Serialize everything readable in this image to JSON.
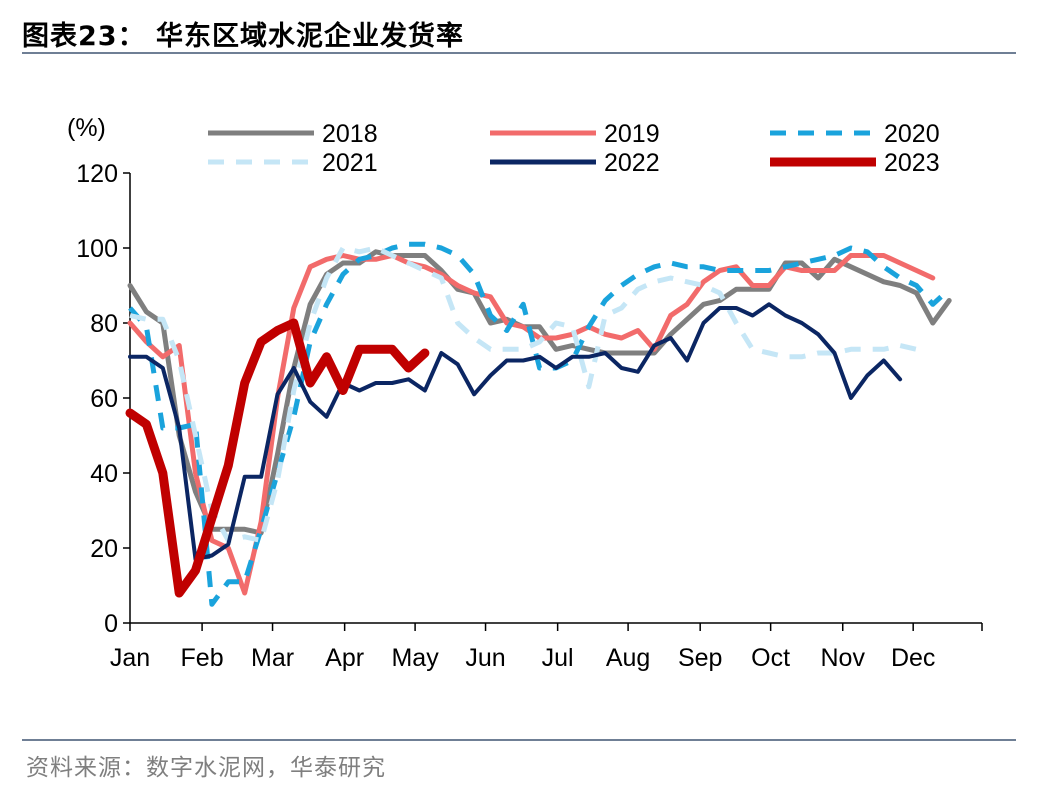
{
  "header": {
    "title": "图表23：  华东区域水泥企业发货率"
  },
  "footer": {
    "source": "资料来源：数字水泥网，华泰研究"
  },
  "chart_data": {
    "type": "line",
    "title": "",
    "ylabel": "(%)",
    "ylim": [
      0,
      120
    ],
    "yticks": [
      0,
      20,
      40,
      60,
      80,
      100,
      120
    ],
    "xlim": [
      0,
      52
    ],
    "month_labels": [
      "Jan",
      "Feb",
      "Mar",
      "Apr",
      "May",
      "Jun",
      "Jul",
      "Aug",
      "Sep",
      "Oct",
      "Nov",
      "Dec"
    ],
    "month_positions": [
      0,
      4.4,
      8.7,
      13.1,
      17.4,
      21.7,
      26.1,
      30.4,
      34.8,
      39.1,
      43.5,
      47.8
    ],
    "grid": false,
    "legend_position": "top",
    "series": [
      {
        "name": "2018",
        "color": "#7f7f7f",
        "dash": "solid",
        "width": 5,
        "points": [
          [
            0,
            90
          ],
          [
            1,
            83
          ],
          [
            2,
            80
          ],
          [
            3,
            50
          ],
          [
            4,
            35
          ],
          [
            5,
            25
          ],
          [
            6,
            25
          ],
          [
            7,
            25
          ],
          [
            8,
            24
          ],
          [
            9,
            45
          ],
          [
            10,
            68
          ],
          [
            11,
            85
          ],
          [
            12,
            93
          ],
          [
            13,
            96
          ],
          [
            14,
            96
          ],
          [
            15,
            99
          ],
          [
            16,
            98
          ],
          [
            17,
            98
          ],
          [
            18,
            98
          ],
          [
            19,
            94
          ],
          [
            20,
            89
          ],
          [
            21,
            88
          ],
          [
            22,
            80
          ],
          [
            23,
            81
          ],
          [
            24,
            79
          ],
          [
            25,
            79
          ],
          [
            26,
            73
          ],
          [
            27,
            74
          ],
          [
            28,
            73
          ],
          [
            29,
            72
          ],
          [
            30,
            72
          ],
          [
            31,
            72
          ],
          [
            32,
            72
          ],
          [
            33,
            77
          ],
          [
            34,
            81
          ],
          [
            35,
            85
          ],
          [
            36,
            86
          ],
          [
            37,
            89
          ],
          [
            38,
            89
          ],
          [
            39,
            89
          ],
          [
            40,
            96
          ],
          [
            41,
            96
          ],
          [
            42,
            92
          ],
          [
            43,
            97
          ],
          [
            44,
            95
          ],
          [
            45,
            93
          ],
          [
            46,
            91
          ],
          [
            47,
            90
          ],
          [
            48,
            88
          ],
          [
            49,
            80
          ],
          [
            50,
            86
          ]
        ]
      },
      {
        "name": "2019",
        "color": "#f26b6b",
        "dash": "solid",
        "width": 5,
        "points": [
          [
            0,
            80
          ],
          [
            1,
            75
          ],
          [
            2,
            71
          ],
          [
            3,
            74
          ],
          [
            4,
            40
          ],
          [
            5,
            22
          ],
          [
            6,
            20
          ],
          [
            7,
            8
          ],
          [
            8,
            27
          ],
          [
            9,
            60
          ],
          [
            10,
            84
          ],
          [
            11,
            95
          ],
          [
            12,
            97
          ],
          [
            13,
            98
          ],
          [
            14,
            97
          ],
          [
            15,
            97
          ],
          [
            16,
            98
          ],
          [
            17,
            96
          ],
          [
            18,
            95
          ],
          [
            19,
            93
          ],
          [
            20,
            90
          ],
          [
            21,
            88
          ],
          [
            22,
            87
          ],
          [
            23,
            80
          ],
          [
            24,
            79
          ],
          [
            25,
            76
          ],
          [
            26,
            76
          ],
          [
            27,
            77
          ],
          [
            28,
            79
          ],
          [
            29,
            77
          ],
          [
            30,
            76
          ],
          [
            31,
            78
          ],
          [
            32,
            73
          ],
          [
            33,
            82
          ],
          [
            34,
            85
          ],
          [
            35,
            91
          ],
          [
            36,
            94
          ],
          [
            37,
            95
          ],
          [
            38,
            90
          ],
          [
            39,
            90
          ],
          [
            40,
            95
          ],
          [
            41,
            94
          ],
          [
            42,
            94
          ],
          [
            43,
            94
          ],
          [
            44,
            98
          ],
          [
            45,
            98
          ],
          [
            46,
            98
          ],
          [
            47,
            96
          ],
          [
            48,
            94
          ],
          [
            49,
            92
          ]
        ]
      },
      {
        "name": "2020",
        "color": "#1aa3dc",
        "dash": "dashed",
        "width": 5,
        "points": [
          [
            0,
            84
          ],
          [
            1,
            79
          ],
          [
            2,
            52
          ],
          [
            3,
            52
          ],
          [
            4,
            53
          ],
          [
            5,
            5
          ],
          [
            6,
            11
          ],
          [
            7,
            11
          ],
          [
            8,
            25
          ],
          [
            9,
            40
          ],
          [
            10,
            55
          ],
          [
            11,
            75
          ],
          [
            12,
            85
          ],
          [
            13,
            93
          ],
          [
            14,
            97
          ],
          [
            15,
            98
          ],
          [
            16,
            100
          ],
          [
            17,
            101
          ],
          [
            18,
            101
          ],
          [
            19,
            100
          ],
          [
            20,
            98
          ],
          [
            21,
            93
          ],
          [
            22,
            82
          ],
          [
            23,
            78
          ],
          [
            24,
            85
          ],
          [
            25,
            68
          ],
          [
            26,
            68
          ],
          [
            27,
            70
          ],
          [
            28,
            79
          ],
          [
            29,
            86
          ],
          [
            30,
            90
          ],
          [
            31,
            93
          ],
          [
            32,
            95
          ],
          [
            33,
            96
          ],
          [
            34,
            95
          ],
          [
            35,
            95
          ],
          [
            36,
            94
          ],
          [
            37,
            94
          ],
          [
            38,
            94
          ],
          [
            39,
            94
          ],
          [
            40,
            95
          ],
          [
            41,
            96
          ],
          [
            42,
            97
          ],
          [
            43,
            98
          ],
          [
            44,
            100
          ],
          [
            45,
            99
          ],
          [
            46,
            95
          ],
          [
            47,
            92
          ],
          [
            48,
            90
          ],
          [
            49,
            85
          ],
          [
            50,
            89
          ]
        ]
      },
      {
        "name": "2021",
        "color": "#c5e6f6",
        "dash": "dashed",
        "width": 5,
        "points": [
          [
            0,
            82
          ],
          [
            1,
            81
          ],
          [
            2,
            81
          ],
          [
            3,
            70
          ],
          [
            4,
            50
          ],
          [
            5,
            30
          ],
          [
            6,
            22
          ],
          [
            7,
            23
          ],
          [
            8,
            22
          ],
          [
            9,
            38
          ],
          [
            10,
            62
          ],
          [
            11,
            80
          ],
          [
            12,
            92
          ],
          [
            13,
            100
          ],
          [
            14,
            99
          ],
          [
            15,
            100
          ],
          [
            16,
            98
          ],
          [
            17,
            96
          ],
          [
            18,
            94
          ],
          [
            19,
            92
          ],
          [
            20,
            80
          ],
          [
            21,
            76
          ],
          [
            22,
            73
          ],
          [
            23,
            73
          ],
          [
            24,
            73
          ],
          [
            25,
            75
          ],
          [
            26,
            80
          ],
          [
            27,
            79
          ],
          [
            28,
            63
          ],
          [
            29,
            82
          ],
          [
            30,
            84
          ],
          [
            31,
            89
          ],
          [
            32,
            91
          ],
          [
            33,
            92
          ],
          [
            34,
            91
          ],
          [
            35,
            90
          ],
          [
            36,
            88
          ],
          [
            37,
            80
          ],
          [
            38,
            73
          ],
          [
            39,
            72
          ],
          [
            40,
            71
          ],
          [
            41,
            71
          ],
          [
            42,
            72
          ],
          [
            43,
            72
          ],
          [
            44,
            73
          ],
          [
            45,
            73
          ],
          [
            46,
            73
          ],
          [
            47,
            74
          ],
          [
            48,
            73
          ]
        ]
      },
      {
        "name": "2022",
        "color": "#0b2663",
        "dash": "solid",
        "width": 4,
        "points": [
          [
            0,
            71
          ],
          [
            1,
            71
          ],
          [
            2,
            68
          ],
          [
            3,
            52
          ],
          [
            4,
            17
          ],
          [
            5,
            18
          ],
          [
            6,
            21
          ],
          [
            7,
            39
          ],
          [
            8,
            39
          ],
          [
            9,
            61
          ],
          [
            10,
            68
          ],
          [
            11,
            59
          ],
          [
            12,
            55
          ],
          [
            13,
            64
          ],
          [
            14,
            62
          ],
          [
            15,
            64
          ],
          [
            16,
            64
          ],
          [
            17,
            65
          ],
          [
            18,
            62
          ],
          [
            19,
            72
          ],
          [
            20,
            69
          ],
          [
            21,
            61
          ],
          [
            22,
            66
          ],
          [
            23,
            70
          ],
          [
            24,
            70
          ],
          [
            25,
            71
          ],
          [
            26,
            68
          ],
          [
            27,
            71
          ],
          [
            28,
            71
          ],
          [
            29,
            72
          ],
          [
            30,
            68
          ],
          [
            31,
            67
          ],
          [
            32,
            74
          ],
          [
            33,
            76
          ],
          [
            34,
            70
          ],
          [
            35,
            80
          ],
          [
            36,
            84
          ],
          [
            37,
            84
          ],
          [
            38,
            82
          ],
          [
            39,
            85
          ],
          [
            40,
            82
          ],
          [
            41,
            80
          ],
          [
            42,
            77
          ],
          [
            43,
            72
          ],
          [
            44,
            60
          ],
          [
            45,
            66
          ],
          [
            46,
            70
          ],
          [
            47,
            65
          ]
        ]
      },
      {
        "name": "2023",
        "color": "#c00000",
        "dash": "solid",
        "width": 9,
        "points": [
          [
            0,
            56
          ],
          [
            1,
            53
          ],
          [
            2,
            40
          ],
          [
            3,
            8
          ],
          [
            4,
            14
          ],
          [
            5,
            28
          ],
          [
            6,
            42
          ],
          [
            7,
            64
          ],
          [
            8,
            75
          ],
          [
            9,
            78
          ],
          [
            10,
            80
          ],
          [
            11,
            64
          ],
          [
            12,
            71
          ],
          [
            13,
            62
          ],
          [
            14,
            73
          ],
          [
            15,
            73
          ],
          [
            16,
            73
          ],
          [
            17,
            68
          ],
          [
            18,
            72
          ]
        ]
      }
    ]
  }
}
